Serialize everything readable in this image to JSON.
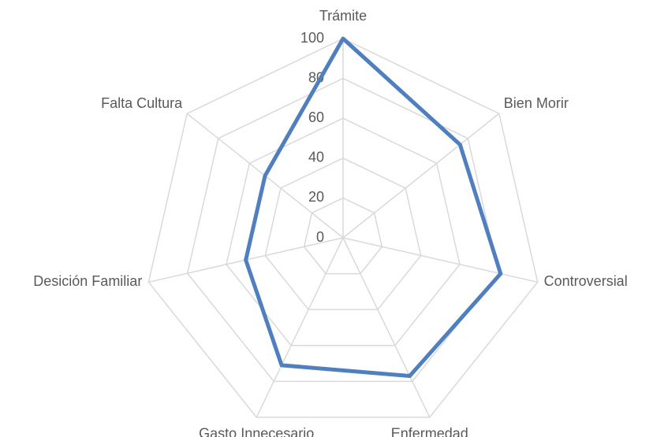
{
  "chart_data": {
    "type": "radar",
    "categories": [
      "Trámite",
      "Bien  Morir",
      "Controversial",
      "Enfermedad",
      "Gasto Innecesario",
      "Desición Familiar",
      "Falta Cultura"
    ],
    "series": [
      {
        "name": null,
        "color": "#4f7fbf",
        "values": [
          100,
          75,
          81,
          77,
          71,
          50,
          50
        ]
      }
    ],
    "ylim": [
      0,
      100
    ],
    "yticks": [
      0,
      20,
      40,
      60,
      80,
      100
    ],
    "grid": true
  }
}
